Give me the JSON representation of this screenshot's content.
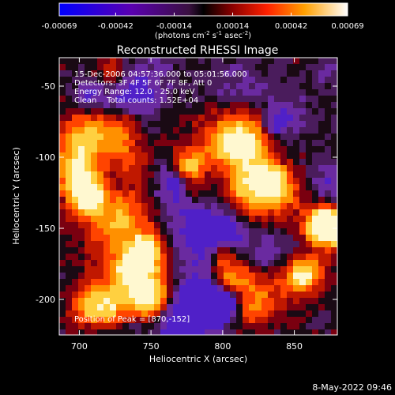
{
  "colorbar": {
    "tick_labels": [
      "-0.00069",
      "-0.00042",
      "-0.00014",
      "0.00014",
      "0.00042",
      "0.00069"
    ],
    "tick_values": [
      -0.00069,
      -0.00042,
      -0.00014,
      0.00014,
      0.00042,
      0.00069
    ],
    "unit_prefix": "(photons cm",
    "unit_exp1": "-2",
    "unit_mid": " s",
    "unit_exp2": "-1",
    "unit_mid2": " asec",
    "unit_exp3": "-2",
    "unit_suffix": ")"
  },
  "title": "Reconstructed RHESSI Image",
  "info": {
    "time_range": "15-Dec-2006 04:57:36.000 to 05:01:56.000",
    "detectors": "Detectors: 3F 4F 5F 6F 7F 8F, Att 0",
    "energy": "Energy Range: 12.0 - 25.0 keV",
    "clean": "Clean    Total counts: 1.52E+04",
    "peak": "Position of Peak = [870,-152]"
  },
  "axes": {
    "xlabel": "Heliocentric X (arcsec)",
    "ylabel": "Heliocentric Y (arcsec)",
    "x_range": [
      686,
      880
    ],
    "y_range": [
      -225,
      -30
    ],
    "x_ticks": [
      700,
      750,
      800,
      850
    ],
    "y_ticks": [
      -50,
      -100,
      -150,
      -200
    ]
  },
  "footer": {
    "timestamp": "8-May-2022 09:46"
  },
  "colors": {
    "background": "#000000",
    "text": "#ffffff"
  }
}
